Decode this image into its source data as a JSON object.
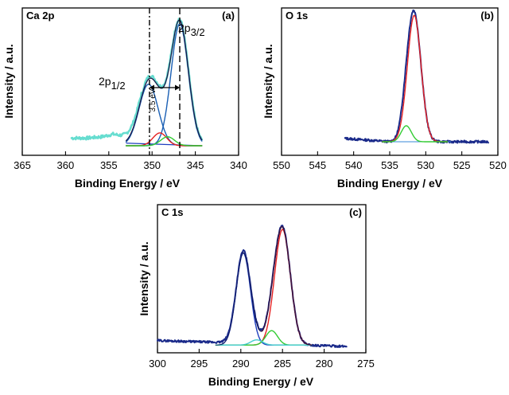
{
  "chart_data": [
    {
      "type": "line",
      "title": "Ca 2p",
      "panel_label": "(a)",
      "xlabel": "Binding Energy / eV",
      "ylabel": "Intensity / a.u.",
      "xlim": [
        365,
        340
      ],
      "x_reversed": true,
      "xticks": [
        "365",
        "360",
        "355",
        "350",
        "345",
        "340"
      ],
      "xtick_values": [
        365,
        360,
        355,
        350,
        345,
        340
      ],
      "colors": {
        "raw": "#66ddd0",
        "envelope": "#1a1a4a",
        "fit_main": "#1a5fb4",
        "fit_minor": "#e52222",
        "fit_green": "#33cc33",
        "background": "#1f3fbf"
      },
      "baseline": {
        "x": [
          359.3,
          357.5,
          355.8,
          354.5,
          353.2,
          352.0,
          351.2
        ],
        "y": [
          0.06,
          0.06,
          0.07,
          0.09,
          0.07,
          0.05,
          0.04
        ]
      },
      "components": [
        {
          "center": 350.4,
          "height": 0.48,
          "width": 1.1,
          "color": "#1a5fb4"
        },
        {
          "center": 346.8,
          "height": 0.95,
          "width": 1.0,
          "color": "#1a5fb4"
        },
        {
          "center": 349.1,
          "height": 0.1,
          "width": 0.8,
          "color": "#e52222"
        },
        {
          "center": 348.2,
          "height": 0.07,
          "width": 0.8,
          "color": "#33cc33"
        }
      ],
      "background_line": {
        "x": [
          353,
          344.2
        ],
        "y": [
          0.02,
          0.0
        ]
      },
      "annotations": {
        "peak1": "2p",
        "peak1_sub": "1/2",
        "peak2": "2p",
        "peak2_sub": "3/2",
        "splitting": "3.5 eV"
      },
      "dashed_lines_x": [
        350.3,
        346.8
      ]
    },
    {
      "type": "line",
      "title": "O 1s",
      "panel_label": "(b)",
      "xlabel": "Binding Energy / eV",
      "ylabel": "Intensity / a.u.",
      "xlim": [
        550,
        520
      ],
      "x_reversed": true,
      "xticks": [
        "550",
        "545",
        "540",
        "535",
        "530",
        "525",
        "520"
      ],
      "xtick_values": [
        550,
        545,
        540,
        535,
        530,
        525,
        520
      ],
      "colors": {
        "raw": "#1a2a8a",
        "fit_main": "#e52222",
        "fit_green": "#33cc33",
        "baseline": "#3a8ad8"
      },
      "baseline_level": 0.03,
      "raw_range": [
        541.2,
        521.3
      ],
      "components": [
        {
          "center": 531.6,
          "height": 0.95,
          "width": 0.95,
          "color": "#e52222"
        },
        {
          "center": 532.7,
          "height": 0.12,
          "width": 0.7,
          "color": "#33cc33"
        }
      ]
    },
    {
      "type": "line",
      "title": "C 1s",
      "panel_label": "(c)",
      "xlabel": "Binding Energy / eV",
      "ylabel": "Intensity / a.u.",
      "xlim": [
        300,
        275
      ],
      "x_reversed": true,
      "xticks": [
        "300",
        "295",
        "290",
        "285",
        "280",
        "275"
      ],
      "xtick_values": [
        300,
        295,
        290,
        285,
        280,
        275
      ],
      "colors": {
        "raw": "#1a2a8a",
        "envelope": "#101040",
        "fit_main": "#e52222",
        "fit_blue": "#1f3fbf",
        "fit_green": "#33cc33",
        "fit_cyan": "#44cccc",
        "fit_maroon": "#7a1a3a"
      },
      "raw_range": [
        300,
        277.3
      ],
      "components": [
        {
          "center": 289.7,
          "height": 0.7,
          "width": 0.85,
          "color": "#1f3fbf"
        },
        {
          "center": 285.0,
          "height": 0.88,
          "width": 0.95,
          "color": "#e52222"
        },
        {
          "center": 286.3,
          "height": 0.11,
          "width": 0.7,
          "color": "#33cc33"
        },
        {
          "center": 288.1,
          "height": 0.04,
          "width": 0.7,
          "color": "#44cccc"
        }
      ]
    }
  ]
}
